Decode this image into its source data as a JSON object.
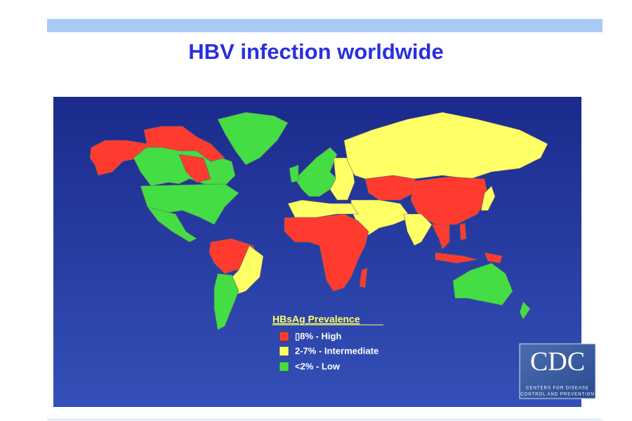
{
  "title": "HBV infection worldwide",
  "legend": {
    "title": "HBsAg Prevalence",
    "items": [
      {
        "label": "▯8% - High",
        "color": "#ff3b2f"
      },
      {
        "label": "2-7% - Intermediate",
        "color": "#ffff66"
      },
      {
        "label": "<2% - Low",
        "color": "#44dd44"
      }
    ]
  },
  "logo": {
    "name": "CDC",
    "line1": "Centers for Disease",
    "line2": "Control and Prevention"
  }
}
